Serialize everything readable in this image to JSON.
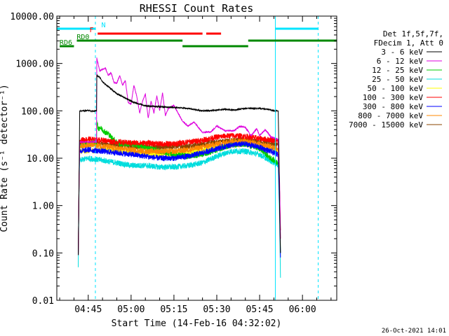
{
  "chart_data": {
    "type": "line",
    "title": "RHESSI Count Rates",
    "xlabel": "Start Time (14-Feb-16 04:32:02)",
    "ylabel": "Count Rate (s^-1 detector^-1)",
    "ylabel_display": "Count Rate (s⁻¹ detector⁻¹)",
    "y_scale": "log",
    "ylim": [
      0.01,
      10000
    ],
    "xlim_minutes": [
      4.0,
      102.0
    ],
    "y_ticks": [
      {
        "value": 10000,
        "label": "10000.00"
      },
      {
        "value": 1000,
        "label": "1000.00"
      },
      {
        "value": 100,
        "label": "100.00"
      },
      {
        "value": 10,
        "label": "10.00"
      },
      {
        "value": 1,
        "label": "1.00"
      },
      {
        "value": 0.1,
        "label": "0.10"
      },
      {
        "value": 0.01,
        "label": "0.01"
      }
    ],
    "x_ticks": [
      {
        "minute": 15,
        "label": "04:45"
      },
      {
        "minute": 30,
        "label": "05:00"
      },
      {
        "minute": 45,
        "label": "05:15"
      },
      {
        "minute": 60,
        "label": "05:30"
      },
      {
        "minute": 75,
        "label": "05:45"
      },
      {
        "minute": 90,
        "label": "06:00"
      }
    ],
    "legend_header": [
      "Det 1f,5f,7f,",
      "FDecim 1, Att 0"
    ],
    "series": [
      {
        "name": "3 - 6 keV",
        "color": "#000000",
        "x": [
          11.5,
          11.8,
          12,
          13,
          15,
          17,
          17.9,
          18,
          19,
          20,
          25,
          31,
          35,
          40,
          45,
          50,
          55,
          60,
          63,
          66,
          70,
          75,
          78,
          80,
          81.5,
          81.8,
          82,
          82.3
        ],
        "y": [
          0.09,
          4,
          100,
          100,
          102,
          98,
          100,
          560,
          520,
          410,
          230,
          150,
          128,
          122,
          118,
          112,
          100,
          103,
          108,
          104,
          113,
          112,
          108,
          100,
          100,
          10,
          0.8,
          0.1
        ]
      },
      {
        "name": "6 - 12 keV",
        "color": "#dd00dd",
        "x": [
          11.5,
          11.8,
          12,
          15,
          17.9,
          18,
          19,
          21,
          22,
          23,
          24,
          25,
          26,
          27,
          28,
          29,
          30,
          31,
          32,
          33,
          34,
          35,
          36,
          37,
          38,
          39,
          40,
          41,
          42,
          43,
          45,
          48,
          50,
          52,
          55,
          58,
          60,
          63,
          66,
          68,
          70,
          72,
          74,
          75,
          77,
          79,
          81.5,
          82,
          82.3
        ],
        "y": [
          0.09,
          4,
          22,
          22,
          22,
          1300,
          700,
          800,
          560,
          640,
          400,
          380,
          560,
          350,
          430,
          150,
          140,
          350,
          200,
          90,
          160,
          225,
          70,
          160,
          90,
          210,
          100,
          240,
          80,
          110,
          130,
          60,
          48,
          58,
          35,
          36,
          48,
          38,
          38,
          47,
          45,
          30,
          42,
          30,
          40,
          28,
          25,
          3,
          0.2
        ]
      },
      {
        "name": "12 - 25 keV",
        "color": "#00cc00",
        "x": [
          11.5,
          11.8,
          12,
          14,
          15,
          16,
          17,
          17.9,
          18,
          18.5,
          19,
          20,
          21,
          22,
          23,
          24,
          25,
          26,
          27,
          30,
          35,
          40,
          45,
          50,
          55,
          60,
          65,
          70,
          75,
          78,
          80,
          81.5,
          82,
          82.3
        ],
        "y": [
          0.09,
          4,
          18,
          20,
          18,
          22,
          20,
          20,
          65,
          40,
          45,
          40,
          35,
          33,
          28,
          25,
          22,
          20,
          20,
          20,
          17,
          14,
          12,
          11,
          12,
          15,
          19,
          20,
          16,
          11,
          9,
          8,
          2,
          0.1
        ]
      },
      {
        "name": "25 - 50 keV",
        "color": "#00dddd",
        "x": [
          11.5,
          11.8,
          12,
          15,
          20,
          25,
          30,
          35,
          40,
          45,
          50,
          55,
          60,
          65,
          70,
          75,
          80,
          81.5,
          82,
          82.3
        ],
        "y": [
          0.05,
          3,
          9,
          10,
          9,
          8,
          7,
          7,
          6.5,
          6.5,
          7,
          8,
          11,
          14,
          14,
          12,
          8,
          7,
          0.5,
          0.03
        ]
      },
      {
        "name": "50 - 100 keV",
        "color": "#ffff00",
        "x": [
          12,
          20,
          30,
          40,
          50,
          60,
          70,
          80,
          81.5
        ],
        "y": [
          14,
          15,
          13,
          12,
          13,
          17,
          20,
          15,
          14
        ]
      },
      {
        "name": "100 - 300 keV",
        "color": "#ff0000",
        "x": [
          11.5,
          11.8,
          12,
          15,
          20,
          25,
          30,
          35,
          40,
          45,
          50,
          55,
          60,
          65,
          70,
          75,
          80,
          81.5,
          82,
          82.3
        ],
        "y": [
          0.09,
          4,
          24,
          25,
          24,
          22,
          21,
          21,
          20,
          20,
          22,
          24,
          28,
          30,
          29,
          26,
          24,
          23,
          2,
          0.3
        ]
      },
      {
        "name": "300 - 800 keV",
        "color": "#0000ff",
        "x": [
          11.5,
          11.8,
          12,
          15,
          20,
          25,
          30,
          35,
          40,
          45,
          50,
          55,
          60,
          65,
          70,
          75,
          80,
          81.5,
          82,
          82.3
        ],
        "y": [
          0.09,
          4,
          14,
          15,
          14,
          13,
          12,
          11,
          10,
          10,
          11,
          13,
          16,
          19,
          20,
          17,
          13,
          12,
          1,
          0.08
        ]
      },
      {
        "name": "800 - 7000 keV",
        "color": "#ff8800",
        "x": [
          11.5,
          11.8,
          12,
          15,
          20,
          25,
          30,
          35,
          40,
          45,
          50,
          55,
          60,
          65,
          70,
          75,
          80,
          81.5,
          82,
          82.3
        ],
        "y": [
          0.09,
          4,
          18,
          19,
          18,
          16,
          15,
          14,
          14,
          14,
          15,
          17,
          20,
          23,
          23,
          20,
          17,
          16,
          1.5,
          0.2
        ]
      },
      {
        "name": "7000 - 15000 keV",
        "color": "#884400",
        "x": [
          12,
          20,
          30,
          40,
          50,
          60,
          70,
          80,
          81.5
        ],
        "y": [
          20,
          20,
          18,
          17,
          18,
          22,
          25,
          20,
          19
        ]
      }
    ],
    "flag_bars": [
      {
        "label": "N",
        "color": "#00e5ff",
        "row": "N",
        "segments": [
          [
            4,
            17.5
          ],
          [
            80.5,
            95.5
          ]
        ]
      },
      {
        "label": "F",
        "color": "#ff0000",
        "row": "F",
        "segments": [
          [
            18.3,
            55
          ],
          [
            56.3,
            61.5
          ]
        ]
      },
      {
        "label": "RD0",
        "color": "#008800",
        "row": "RD0",
        "segments": [
          [
            11,
            48
          ],
          [
            71,
            102
          ]
        ]
      },
      {
        "label": "RD6",
        "color": "#008800",
        "row": "RD6",
        "segments": [
          [
            5,
            10
          ],
          [
            48,
            71
          ]
        ]
      }
    ],
    "vlines": [
      {
        "minute": 17.5,
        "style": "dashed"
      },
      {
        "minute": 80.5,
        "style": "solid"
      },
      {
        "minute": 95.5,
        "style": "dashed"
      }
    ]
  },
  "footer": {
    "timestamp": "26-Oct-2021 14:01"
  }
}
